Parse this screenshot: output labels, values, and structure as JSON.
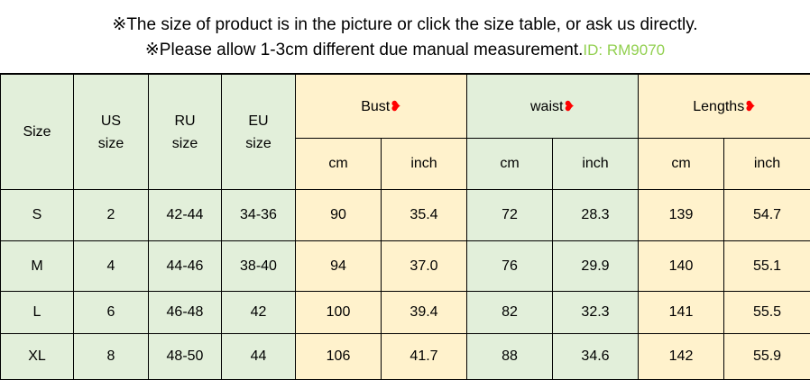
{
  "notes": {
    "line1": "※The size of product is in the picture or click the size table, or ask us directly.",
    "line2": "※Please allow 1-3cm different due manual measurement.",
    "id": "ID: RM9070"
  },
  "colors": {
    "green": "#e2efda",
    "yellow": "#fff2cc",
    "id": "#92d050",
    "arrow": "#ff0000"
  },
  "headers": {
    "size": "Size",
    "us": "US\nsize",
    "ru": "RU\nsize",
    "eu": "EU\nsize",
    "bust": "Bust",
    "waist": "waist",
    "lengths": "Lengths",
    "arrow": "❥",
    "cm": "cm",
    "inch": "inch"
  },
  "rows": [
    [
      "S",
      "2",
      "42-44",
      "34-36",
      "90",
      "35.4",
      "72",
      "28.3",
      "139",
      "54.7"
    ],
    [
      "M",
      "4",
      "44-46",
      "38-40",
      "94",
      "37.0",
      "76",
      "29.9",
      "140",
      "55.1"
    ],
    [
      "L",
      "6",
      "46-48",
      "42",
      "100",
      "39.4",
      "82",
      "32.3",
      "141",
      "55.5"
    ],
    [
      "XL",
      "8",
      "48-50",
      "44",
      "106",
      "41.7",
      "88",
      "34.6",
      "142",
      "55.9"
    ]
  ]
}
